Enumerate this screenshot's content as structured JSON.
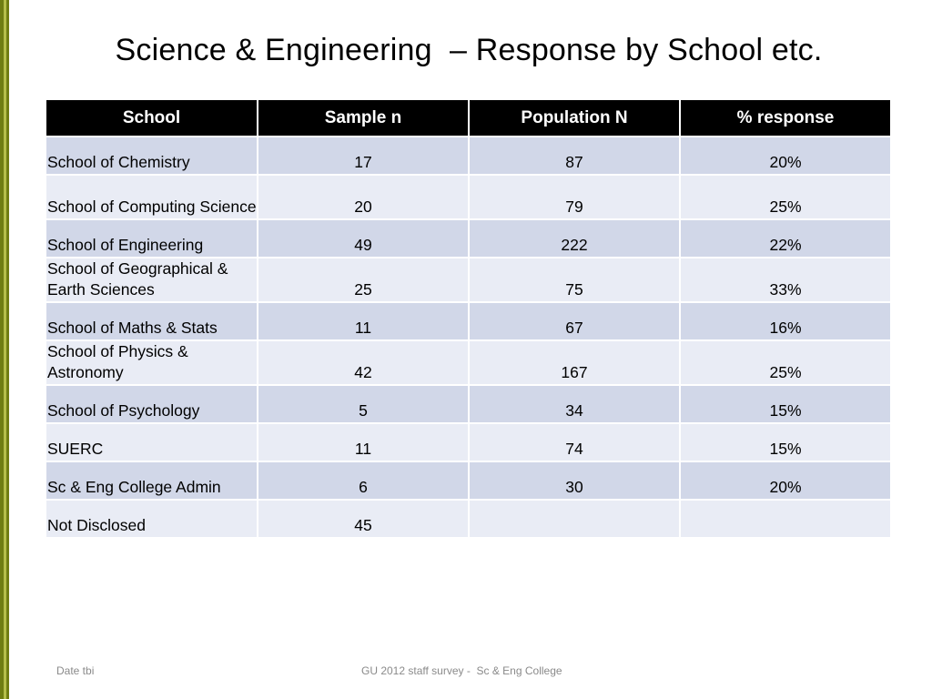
{
  "colors": {
    "accent_bar_dark": "#6f7d12",
    "accent_bar_light": "#b5bf4a",
    "header_bg": "#000000",
    "header_text": "#ffffff",
    "row_dark": "#d1d7e8",
    "row_light": "#e9ecf5"
  },
  "slide": {
    "title": "Science & Engineering  – Response by School etc."
  },
  "table": {
    "headers": [
      "School",
      "Sample n",
      "Population N",
      "% response"
    ],
    "rows": [
      {
        "school": "School of Chemistry",
        "sample": "17",
        "population": "87",
        "response": "20%"
      },
      {
        "school": "School of Computing Science",
        "sample": "20",
        "population": "79",
        "response": "25%"
      },
      {
        "school": "School of Engineering",
        "sample": "49",
        "population": "222",
        "response": "22%"
      },
      {
        "school": "School of Geographical & Earth Sciences",
        "sample": "25",
        "population": "75",
        "response": "33%"
      },
      {
        "school": "School of Maths & Stats",
        "sample": "11",
        "population": "67",
        "response": "16%"
      },
      {
        "school": "School of Physics & Astronomy",
        "sample": "42",
        "population": "167",
        "response": "25%"
      },
      {
        "school": "School  of Psychology",
        "sample": "5",
        "population": "34",
        "response": "15%"
      },
      {
        "school": "SUERC",
        "sample": "11",
        "population": "74",
        "response": "15%"
      },
      {
        "school": "Sc & Eng College Admin",
        "sample": "6",
        "population": "30",
        "response": "20%"
      },
      {
        "school": "Not Disclosed",
        "sample": "45",
        "population": "",
        "response": ""
      }
    ]
  },
  "footer": {
    "date": "Date tbi",
    "center": "GU 2012 staff survey -  Sc & Eng College"
  }
}
